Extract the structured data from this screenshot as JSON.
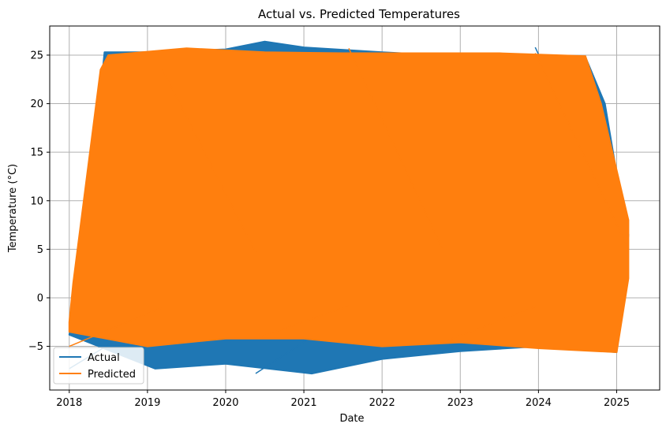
{
  "chart_data": {
    "type": "line",
    "title": "Actual vs. Predicted Temperatures",
    "xlabel": "Date",
    "ylabel": "Temperature (°C)",
    "xlim": [
      2017.75,
      2025.55
    ],
    "ylim": [
      -9.5,
      28.0
    ],
    "x_ticks": [
      "2018",
      "2019",
      "2020",
      "2021",
      "2022",
      "2023",
      "2024",
      "2025"
    ],
    "y_ticks": [
      "−5",
      "0",
      "5",
      "10",
      "15",
      "20",
      "25"
    ],
    "grid": true,
    "legend_position": "lower left",
    "series": [
      {
        "name": "Actual",
        "color": "#1f77b4",
        "envelope_upper": [
          [
            2018.0,
            -3.8
          ],
          [
            2018.2,
            5.0
          ],
          [
            2018.45,
            25.3
          ],
          [
            2019.0,
            25.3
          ],
          [
            2020.0,
            25.6
          ],
          [
            2020.5,
            26.4
          ],
          [
            2021.0,
            25.8
          ],
          [
            2022.0,
            25.3
          ],
          [
            2023.0,
            24.9
          ],
          [
            2023.6,
            25.0
          ],
          [
            2024.6,
            24.8
          ],
          [
            2024.85,
            20.0
          ],
          [
            2025.1,
            8.0
          ],
          [
            2025.15,
            6.5
          ]
        ],
        "envelope_lower": [
          [
            2018.0,
            -3.8
          ],
          [
            2019.1,
            -7.3
          ],
          [
            2020.0,
            -6.8
          ],
          [
            2021.1,
            -7.8
          ],
          [
            2022.0,
            -6.3
          ],
          [
            2023.0,
            -5.5
          ],
          [
            2024.0,
            -5.0
          ],
          [
            2025.0,
            -5.6
          ],
          [
            2025.15,
            6.5
          ]
        ]
      },
      {
        "name": "Predicted",
        "color": "#ff7f0e",
        "envelope_upper": [
          [
            2018.0,
            -2.5
          ],
          [
            2018.05,
            1.5
          ],
          [
            2018.4,
            23.5
          ],
          [
            2018.5,
            25.0
          ],
          [
            2019.5,
            25.7
          ],
          [
            2020.5,
            25.3
          ],
          [
            2021.5,
            25.2
          ],
          [
            2022.5,
            25.2
          ],
          [
            2023.5,
            25.2
          ],
          [
            2024.6,
            24.9
          ],
          [
            2024.8,
            20.0
          ],
          [
            2025.15,
            8.0
          ]
        ],
        "envelope_lower": [
          [
            2018.0,
            -3.5
          ],
          [
            2019.0,
            -5.0
          ],
          [
            2020.0,
            -4.2
          ],
          [
            2021.0,
            -4.2
          ],
          [
            2022.0,
            -5.0
          ],
          [
            2023.0,
            -4.6
          ],
          [
            2024.0,
            -5.2
          ],
          [
            2025.0,
            -5.6
          ],
          [
            2025.15,
            2.0
          ]
        ]
      }
    ]
  }
}
